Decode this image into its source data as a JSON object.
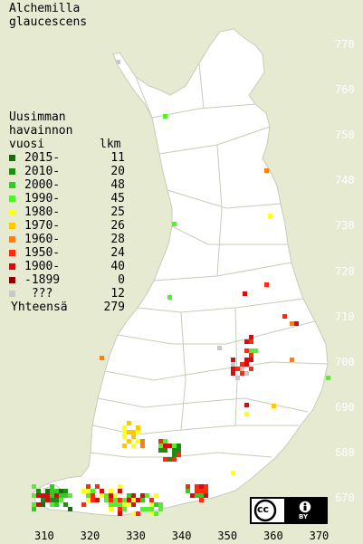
{
  "title_lines": [
    "Alchemilla",
    "glaucescens"
  ],
  "legend": {
    "heading_lines": [
      "Uusimman",
      "havainnon",
      "vuosi"
    ],
    "count_heading": "lkm",
    "entries": [
      {
        "label": "2015-",
        "count": "11",
        "color": "#1a6b10"
      },
      {
        "label": "2010-",
        "count": "20",
        "color": "#228b14"
      },
      {
        "label": "2000-",
        "count": "48",
        "color": "#33cc22"
      },
      {
        "label": "1990-",
        "count": "45",
        "color": "#55ee33"
      },
      {
        "label": "1980-",
        "count": "25",
        "color": "#ffff22"
      },
      {
        "label": "1970-",
        "count": "26",
        "color": "#ffc800"
      },
      {
        "label": "1960-",
        "count": "28",
        "color": "#ff7f10"
      },
      {
        "label": "1950-",
        "count": "24",
        "color": "#ff2a10"
      },
      {
        "label": "1900-",
        "count": "40",
        "color": "#d40e0e"
      },
      {
        "label": "-1899",
        "count": "0",
        "color": "#8b0000"
      },
      {
        "label": " ???",
        "count": "12",
        "color": "#c8c8c8"
      }
    ],
    "total_label": "Yhteensä",
    "total_count": "279"
  },
  "y_ticks": [
    "770",
    "760",
    "750",
    "740",
    "730",
    "720",
    "710",
    "700",
    "690",
    "680",
    "670"
  ],
  "x_ticks": [
    "310",
    "320",
    "330",
    "340",
    "350",
    "360",
    "370"
  ],
  "license": {
    "cc": "cc",
    "by": "BY"
  }
}
